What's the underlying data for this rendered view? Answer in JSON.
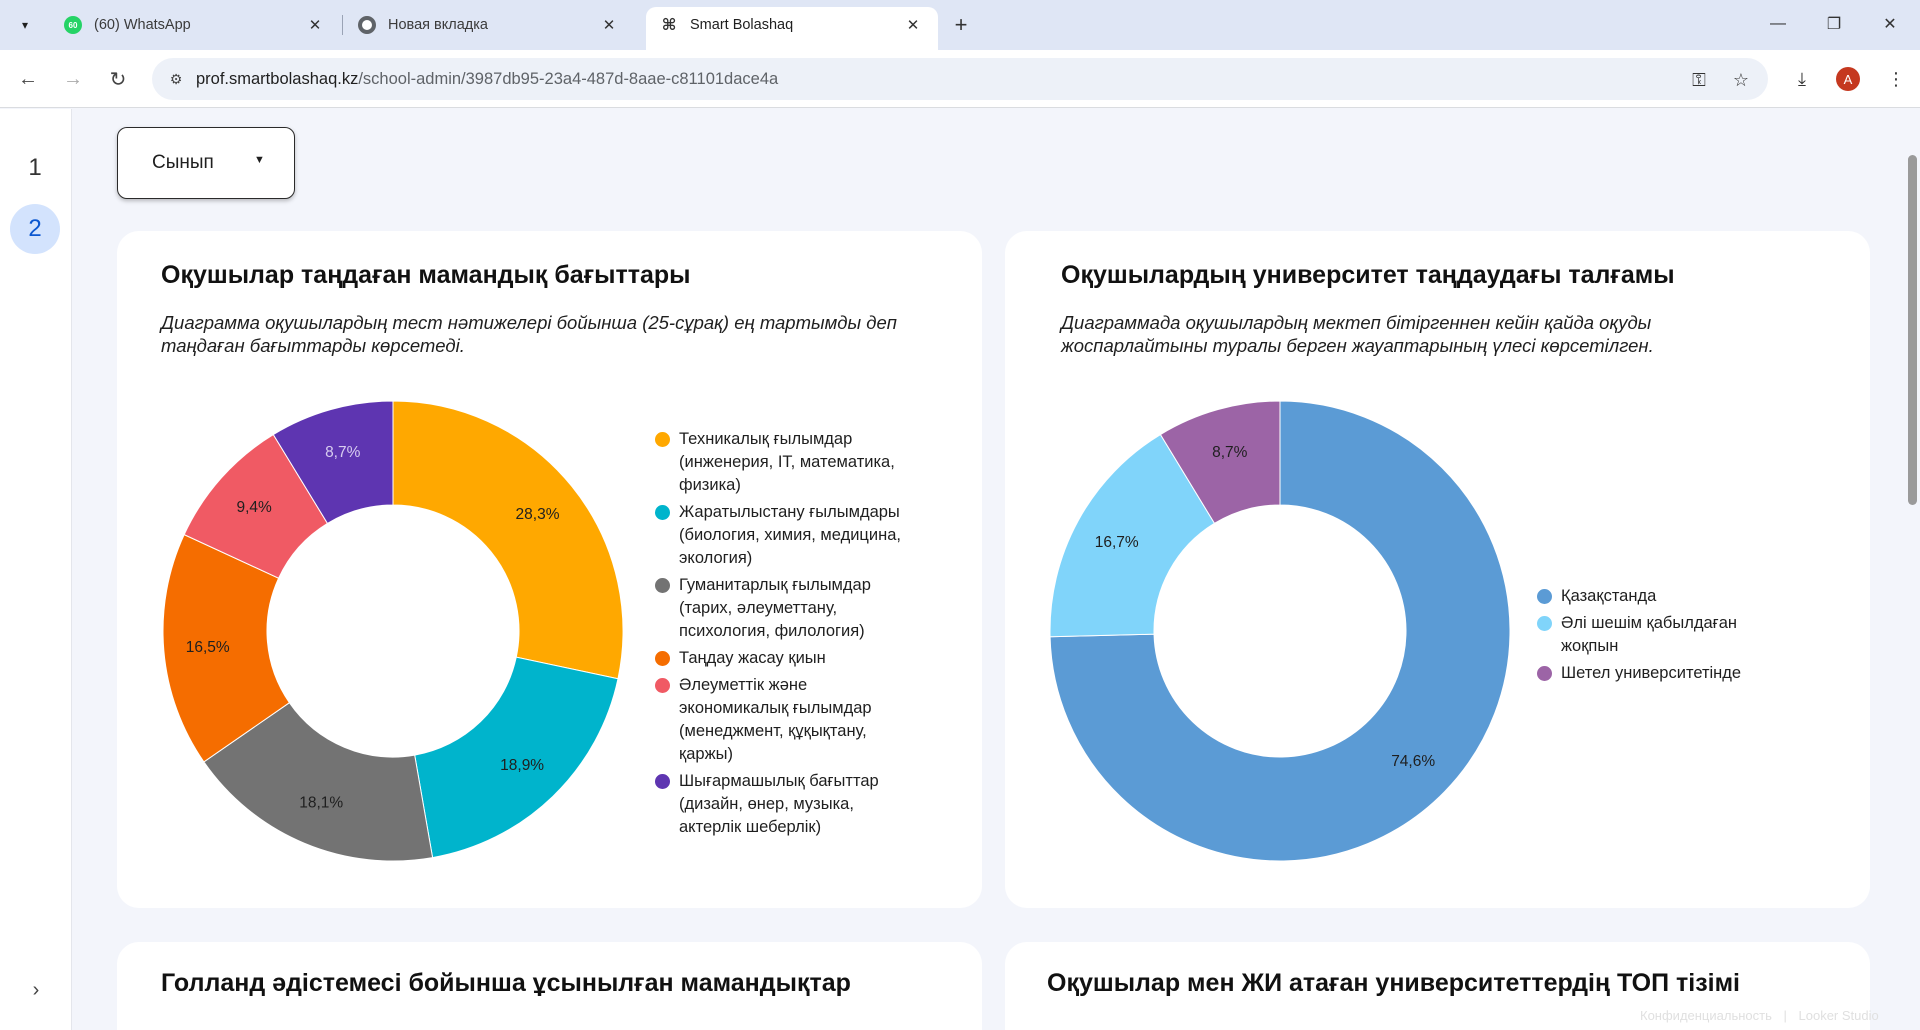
{
  "browser": {
    "tabs": [
      {
        "title": "(60) WhatsApp",
        "badge": "60",
        "icon": "whatsapp-icon"
      },
      {
        "title": "Новая вкладка",
        "icon": "chrome-icon"
      },
      {
        "title": "Smart Bolashaq",
        "icon": "command-icon",
        "active": true
      }
    ],
    "url_host": "prof.smartbolashaq.kz",
    "url_path": "/school-admin/3987db95-23a4-487d-8aae-c81101dace4a",
    "profile_initial": "A"
  },
  "sidebar": {
    "pages": [
      "1",
      "2"
    ],
    "active_page": "2"
  },
  "filter": {
    "label": "Сынып"
  },
  "cards": {
    "directions": {
      "title": "Оқушылар таңдаған мамандық бағыттары",
      "subtitle": "Диаграмма оқушылардың тест нәтижелері бойынша (25-сұрақ) ең тартымды деп таңдаған бағыттарды көрсетеді."
    },
    "universities": {
      "title": "Оқушылардың университет таңдаудағы талғамы",
      "subtitle": "Диаграммада оқушылардың мектеп бітіргеннен кейін қайда оқуды жоспарлайтыны туралы берген жауаптарының үлесі көрсетілген."
    },
    "holland": {
      "title": "Голланд әдістемесі бойынша ұсынылған мамандықтар"
    },
    "top_universities": {
      "title": "Оқушылар мен ЖИ атаған университеттердің ТОП тізімі"
    }
  },
  "chart_data": [
    {
      "type": "pie",
      "donut": true,
      "legend": "right",
      "categories": [
        "Техникалық ғылымдар (инженерия, IT, математика, физика)",
        "Жаратылыстану ғылымдары (биология, химия, медицина, экология)",
        "Гуманитарлық ғылымдар (тарих, әлеуметтану, психология, филология)",
        "Таңдау жасау қиын",
        "Әлеуметтік және экономикалық ғылымдар (менеджмент, құқықтану, қаржы)",
        "Шығармашылық бағыттар (дизайн, өнер, музыка, актерлік шеберлік)"
      ],
      "values": [
        28.3,
        18.9,
        18.1,
        16.5,
        9.4,
        8.7
      ],
      "labels": [
        "28,3%",
        "18,9%",
        "18,1%",
        "16,5%",
        "9,4%",
        "8,7%"
      ],
      "colors": [
        "#ffa800",
        "#00b4cc",
        "#737373",
        "#f56d00",
        "#f05a64",
        "#5e35b1"
      ],
      "label_colors": [
        "#1f1f1f",
        "#1f1f1f",
        "#1f1f1f",
        "#1f1f1f",
        "#1f1f1f",
        "#d8cdf0"
      ]
    },
    {
      "type": "pie",
      "donut": true,
      "legend": "right",
      "categories": [
        "Қазақстанда",
        "Әлі шешім қабылдаған жоқпын",
        "Шетел университетінде"
      ],
      "values": [
        74.6,
        16.7,
        8.7
      ],
      "labels": [
        "74,6%",
        "16,7%",
        "8,7%"
      ],
      "colors": [
        "#5b9bd5",
        "#80d4fa",
        "#9c64a6"
      ],
      "label_colors": [
        "#1f1f1f",
        "#1f1f1f",
        "#1f1f1f"
      ]
    }
  ],
  "footer": {
    "privacy": "Конфиденциальность",
    "brand": "Looker Studio"
  }
}
